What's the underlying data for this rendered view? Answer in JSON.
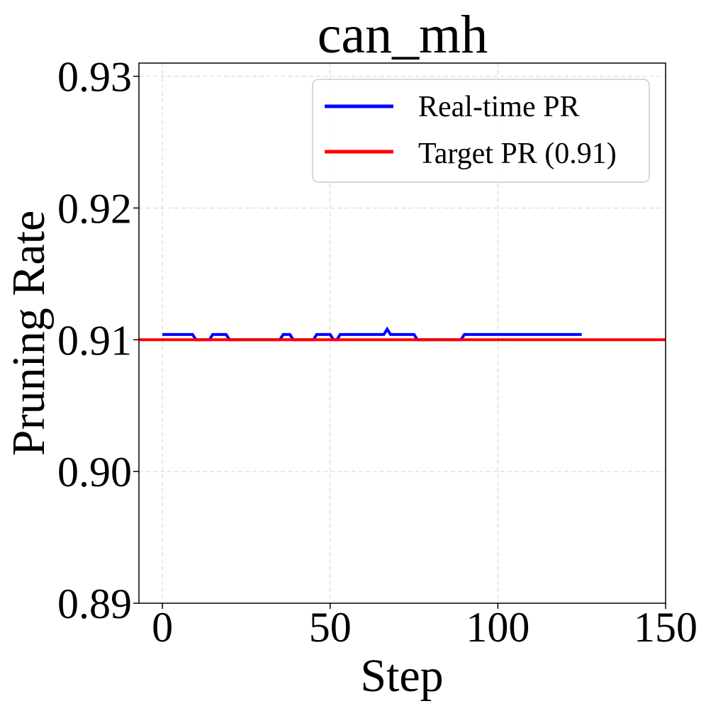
{
  "chart_data": {
    "type": "line",
    "title": "can_mh",
    "xlabel": "Step",
    "ylabel": "Pruning Rate",
    "xlim": [
      -7,
      150
    ],
    "ylim": [
      0.89,
      0.931
    ],
    "xticks": [
      0,
      50,
      100,
      150
    ],
    "xtick_labels": [
      "0",
      "50",
      "100",
      "150"
    ],
    "yticks": [
      0.89,
      0.9,
      0.91,
      0.92,
      0.93
    ],
    "ytick_labels": [
      "0.89",
      "0.90",
      "0.91",
      "0.92",
      "0.93"
    ],
    "grid": true,
    "legend_position": "top-right",
    "series": [
      {
        "name": "Real-time PR",
        "color": "#0000ff",
        "x": [
          0,
          9,
          10,
          14,
          15,
          19,
          20,
          35,
          36,
          38,
          39,
          45,
          46,
          50,
          51,
          52,
          53,
          66,
          67,
          68,
          75,
          76,
          89,
          90,
          125
        ],
        "y": [
          0.9104,
          0.9104,
          0.91,
          0.91,
          0.9104,
          0.9104,
          0.91,
          0.91,
          0.9104,
          0.9104,
          0.91,
          0.91,
          0.9104,
          0.9104,
          0.91,
          0.91,
          0.9104,
          0.9104,
          0.9108,
          0.9104,
          0.9104,
          0.91,
          0.91,
          0.9104,
          0.9104
        ]
      },
      {
        "name": "Target PR (0.91)",
        "color": "#ff0000",
        "hline": 0.91
      }
    ]
  }
}
